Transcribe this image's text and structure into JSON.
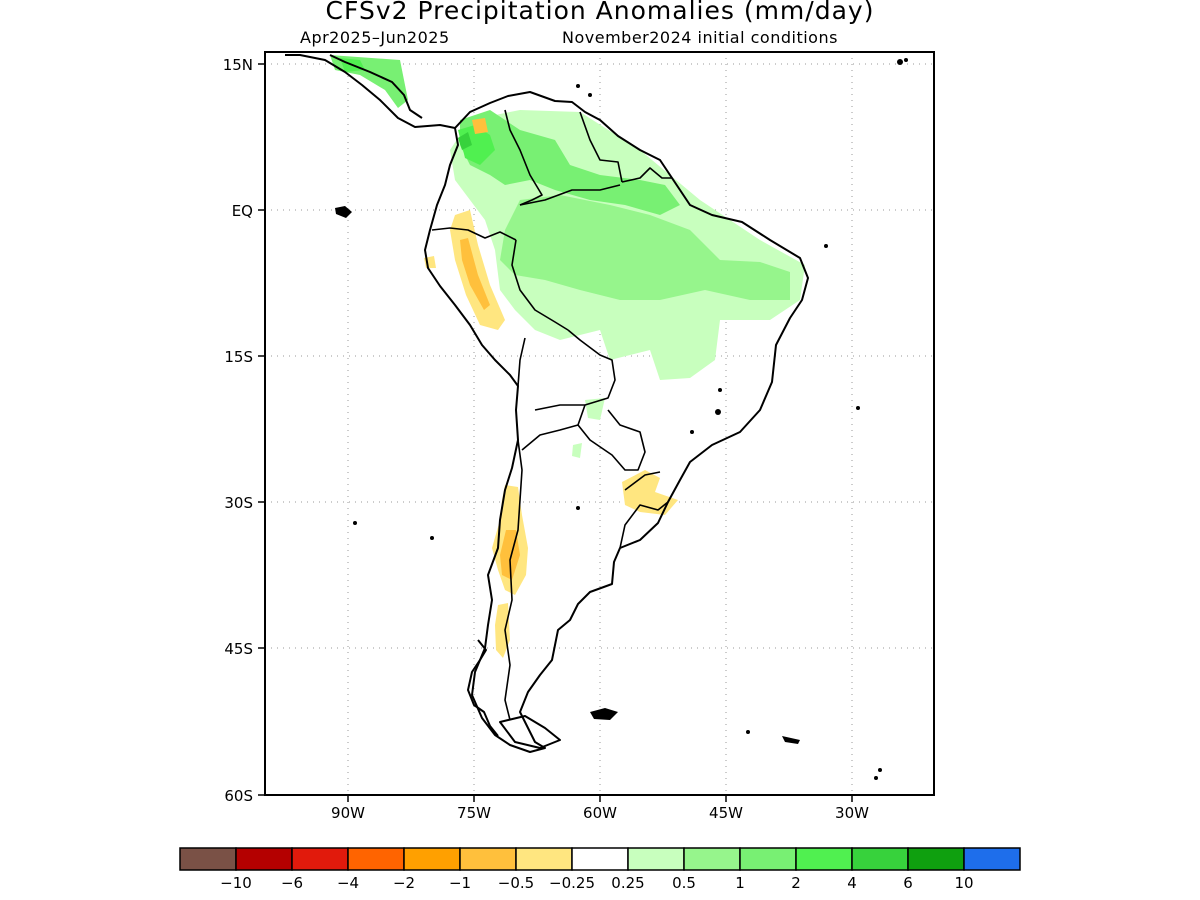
{
  "map": {
    "title": "CFSv2 Precipitation Anomalies (mm/day)",
    "subtitle_left": "Apr2025–Jun2025",
    "subtitle_right": "November2024 initial conditions",
    "lat_labels": [
      "15N",
      "EQ",
      "15S",
      "30S",
      "45S",
      "60S"
    ],
    "lon_labels": [
      "90W",
      "75W",
      "60W",
      "45W",
      "30W"
    ],
    "extent": {
      "lon_min": -100,
      "lon_max": -20,
      "lat_min": -60,
      "lat_max": 16
    }
  },
  "colorbar": {
    "colors": [
      "#7a5146",
      "#b40000",
      "#e11a0c",
      "#ff6400",
      "#ffa000",
      "#ffc03c",
      "#ffe680",
      "#ffffff",
      "#c8ffbe",
      "#96f58c",
      "#78f073",
      "#50f050",
      "#37d23c",
      "#0fa00f",
      "#1e6eeb"
    ],
    "labels": [
      "−10",
      "−6",
      "−4",
      "−2",
      "−1",
      "−0.5",
      "−0.25",
      "0.25",
      "0.5",
      "1",
      "2",
      "4",
      "6",
      "10"
    ]
  }
}
